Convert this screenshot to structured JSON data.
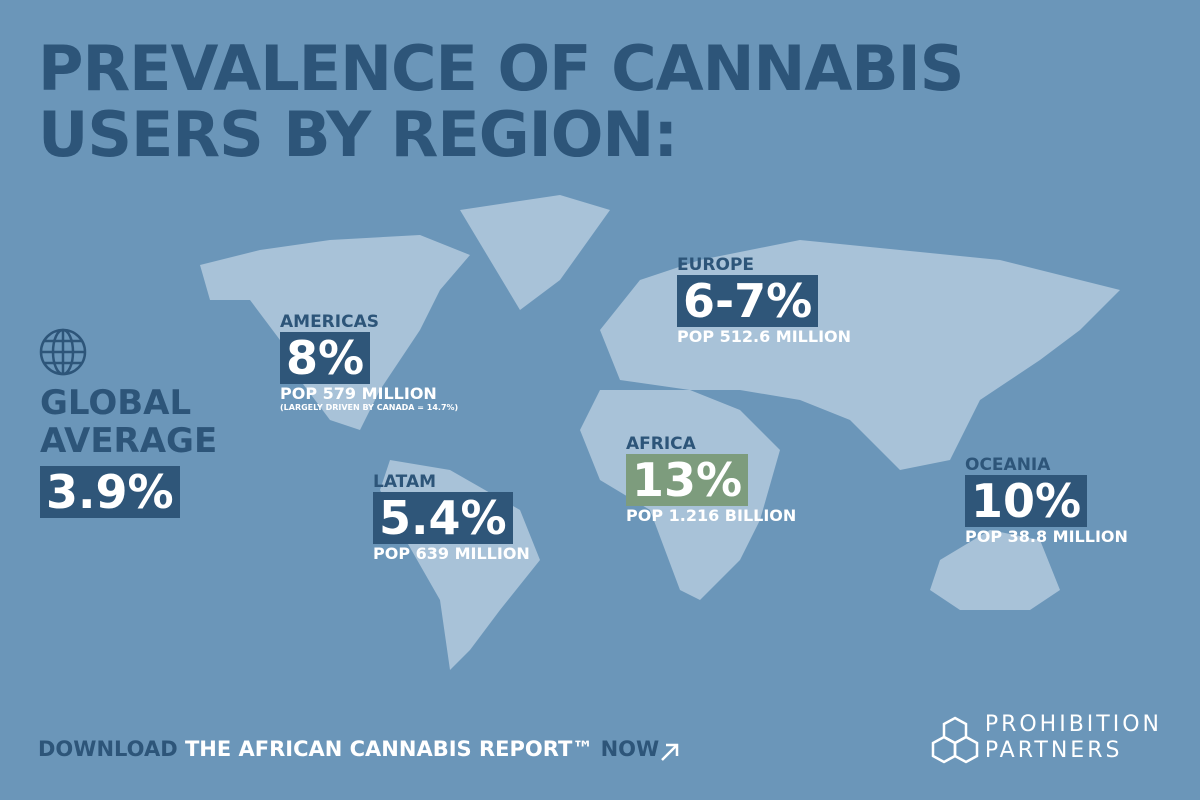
{
  "title_lines": [
    "PREVALENCE OF CANNABIS",
    "USERS BY REGION:"
  ],
  "global": {
    "label_lines": [
      "GLOBAL",
      "AVERAGE"
    ],
    "value": "3.9%"
  },
  "regions": [
    {
      "name": "AMERICAS",
      "value": "8%",
      "population": "POP 579 MILLION",
      "note": "(LARGELY DRIVEN BY CANADA = 14.7%)"
    },
    {
      "name": "LATAM",
      "value": "5.4%",
      "population": "POP 639 MILLION"
    },
    {
      "name": "EUROPE",
      "value": "6-7%",
      "population": "POP 512.6 MILLION"
    },
    {
      "name": "AFRICA",
      "value": "13%",
      "population": "POP 1.216 BILLION"
    },
    {
      "name": "OCEANIA",
      "value": "10%",
      "population": "POP 38.8 MILLION"
    }
  ],
  "footer": {
    "cta_prefix": "DOWNLOAD",
    "cta_title": "THE AFRICAN CANNABIS REPORT™",
    "cta_suffix": "NOW"
  },
  "logo": {
    "lines": [
      "PROHIBITION",
      "PARTNERS"
    ]
  }
}
